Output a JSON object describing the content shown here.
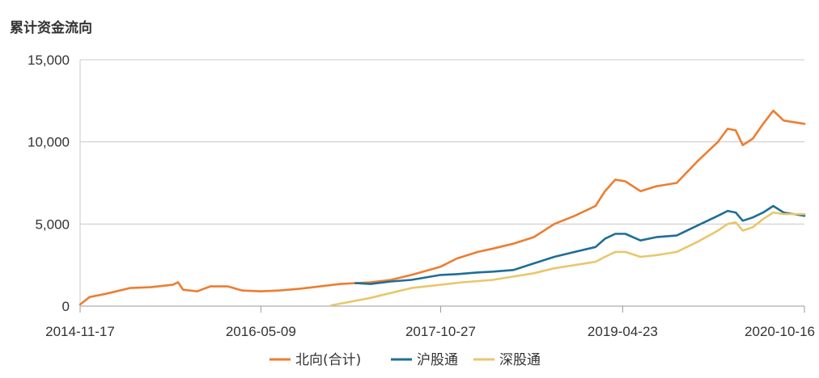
{
  "chart_data": {
    "type": "line",
    "title": "累计资金流向",
    "xlabel": "",
    "ylabel": "",
    "ylim": [
      0,
      15000
    ],
    "yticks": [
      0,
      5000,
      10000,
      15000
    ],
    "ytick_labels": [
      "0",
      "5,000",
      "10,000",
      "15,000"
    ],
    "xlim": [
      "2014-11-17",
      "2020-10-16"
    ],
    "xticks": [
      "2014-11-17",
      "2016-05-09",
      "2017-10-27",
      "2019-04-23",
      "2020-10-16"
    ],
    "grid": "horizontal",
    "legend_position": "bottom",
    "series": [
      {
        "name": "北向(合计)",
        "color": "#ED7D31",
        "points": [
          [
            "2014-11-17",
            100
          ],
          [
            "2014-12-15",
            550
          ],
          [
            "2015-02-01",
            750
          ],
          [
            "2015-04-15",
            1100
          ],
          [
            "2015-06-15",
            1150
          ],
          [
            "2015-08-20",
            1300
          ],
          [
            "2015-09-05",
            1450
          ],
          [
            "2015-09-20",
            1000
          ],
          [
            "2015-11-01",
            900
          ],
          [
            "2015-12-10",
            1200
          ],
          [
            "2016-02-01",
            1200
          ],
          [
            "2016-03-15",
            950
          ],
          [
            "2016-05-09",
            900
          ],
          [
            "2016-07-01",
            950
          ],
          [
            "2016-09-01",
            1050
          ],
          [
            "2016-11-01",
            1200
          ],
          [
            "2017-01-01",
            1350
          ],
          [
            "2017-04-01",
            1450
          ],
          [
            "2017-06-01",
            1600
          ],
          [
            "2017-08-01",
            1900
          ],
          [
            "2017-10-27",
            2400
          ],
          [
            "2017-12-15",
            2900
          ],
          [
            "2018-02-15",
            3300
          ],
          [
            "2018-04-01",
            3500
          ],
          [
            "2018-06-01",
            3800
          ],
          [
            "2018-08-01",
            4200
          ],
          [
            "2018-10-01",
            5000
          ],
          [
            "2018-12-01",
            5500
          ],
          [
            "2019-02-01",
            6100
          ],
          [
            "2019-03-01",
            7000
          ],
          [
            "2019-04-01",
            7700
          ],
          [
            "2019-05-01",
            7600
          ],
          [
            "2019-06-15",
            7000
          ],
          [
            "2019-08-01",
            7300
          ],
          [
            "2019-10-01",
            7500
          ],
          [
            "2019-12-01",
            8800
          ],
          [
            "2020-02-01",
            10000
          ],
          [
            "2020-03-01",
            10800
          ],
          [
            "2020-03-25",
            10700
          ],
          [
            "2020-04-15",
            9800
          ],
          [
            "2020-05-15",
            10200
          ],
          [
            "2020-06-15",
            11100
          ],
          [
            "2020-07-15",
            11900
          ],
          [
            "2020-08-15",
            11300
          ],
          [
            "2020-09-15",
            11200
          ],
          [
            "2020-10-16",
            11100
          ]
        ]
      },
      {
        "name": "沪股通",
        "color": "#1F6E96",
        "points": [
          [
            "2017-02-15",
            1400
          ],
          [
            "2017-04-01",
            1350
          ],
          [
            "2017-06-01",
            1500
          ],
          [
            "2017-08-01",
            1600
          ],
          [
            "2017-10-27",
            1900
          ],
          [
            "2017-12-15",
            1950
          ],
          [
            "2018-02-15",
            2050
          ],
          [
            "2018-04-01",
            2100
          ],
          [
            "2018-06-01",
            2200
          ],
          [
            "2018-08-01",
            2600
          ],
          [
            "2018-10-01",
            3000
          ],
          [
            "2018-12-01",
            3300
          ],
          [
            "2019-02-01",
            3600
          ],
          [
            "2019-03-01",
            4100
          ],
          [
            "2019-04-01",
            4400
          ],
          [
            "2019-05-01",
            4400
          ],
          [
            "2019-06-15",
            4000
          ],
          [
            "2019-08-01",
            4200
          ],
          [
            "2019-10-01",
            4300
          ],
          [
            "2019-12-01",
            4900
          ],
          [
            "2020-02-01",
            5500
          ],
          [
            "2020-03-01",
            5800
          ],
          [
            "2020-03-25",
            5700
          ],
          [
            "2020-04-15",
            5200
          ],
          [
            "2020-05-15",
            5400
          ],
          [
            "2020-06-15",
            5700
          ],
          [
            "2020-07-15",
            6100
          ],
          [
            "2020-08-15",
            5700
          ],
          [
            "2020-09-15",
            5600
          ],
          [
            "2020-10-16",
            5500
          ]
        ]
      },
      {
        "name": "深股通",
        "color": "#E8C76B",
        "points": [
          [
            "2016-12-05",
            50
          ],
          [
            "2017-01-15",
            200
          ],
          [
            "2017-04-01",
            500
          ],
          [
            "2017-06-01",
            800
          ],
          [
            "2017-08-01",
            1100
          ],
          [
            "2017-10-27",
            1300
          ],
          [
            "2018-01-01",
            1450
          ],
          [
            "2018-04-01",
            1600
          ],
          [
            "2018-06-01",
            1800
          ],
          [
            "2018-08-01",
            2000
          ],
          [
            "2018-10-01",
            2300
          ],
          [
            "2018-12-01",
            2500
          ],
          [
            "2019-02-01",
            2700
          ],
          [
            "2019-03-01",
            3000
          ],
          [
            "2019-04-01",
            3300
          ],
          [
            "2019-05-01",
            3300
          ],
          [
            "2019-06-15",
            3000
          ],
          [
            "2019-08-01",
            3100
          ],
          [
            "2019-10-01",
            3300
          ],
          [
            "2019-12-01",
            3900
          ],
          [
            "2020-02-01",
            4600
          ],
          [
            "2020-03-01",
            5000
          ],
          [
            "2020-03-25",
            5100
          ],
          [
            "2020-04-15",
            4600
          ],
          [
            "2020-05-15",
            4800
          ],
          [
            "2020-06-15",
            5300
          ],
          [
            "2020-07-15",
            5700
          ],
          [
            "2020-08-15",
            5600
          ],
          [
            "2020-09-15",
            5600
          ],
          [
            "2020-10-16",
            5600
          ]
        ]
      }
    ]
  }
}
